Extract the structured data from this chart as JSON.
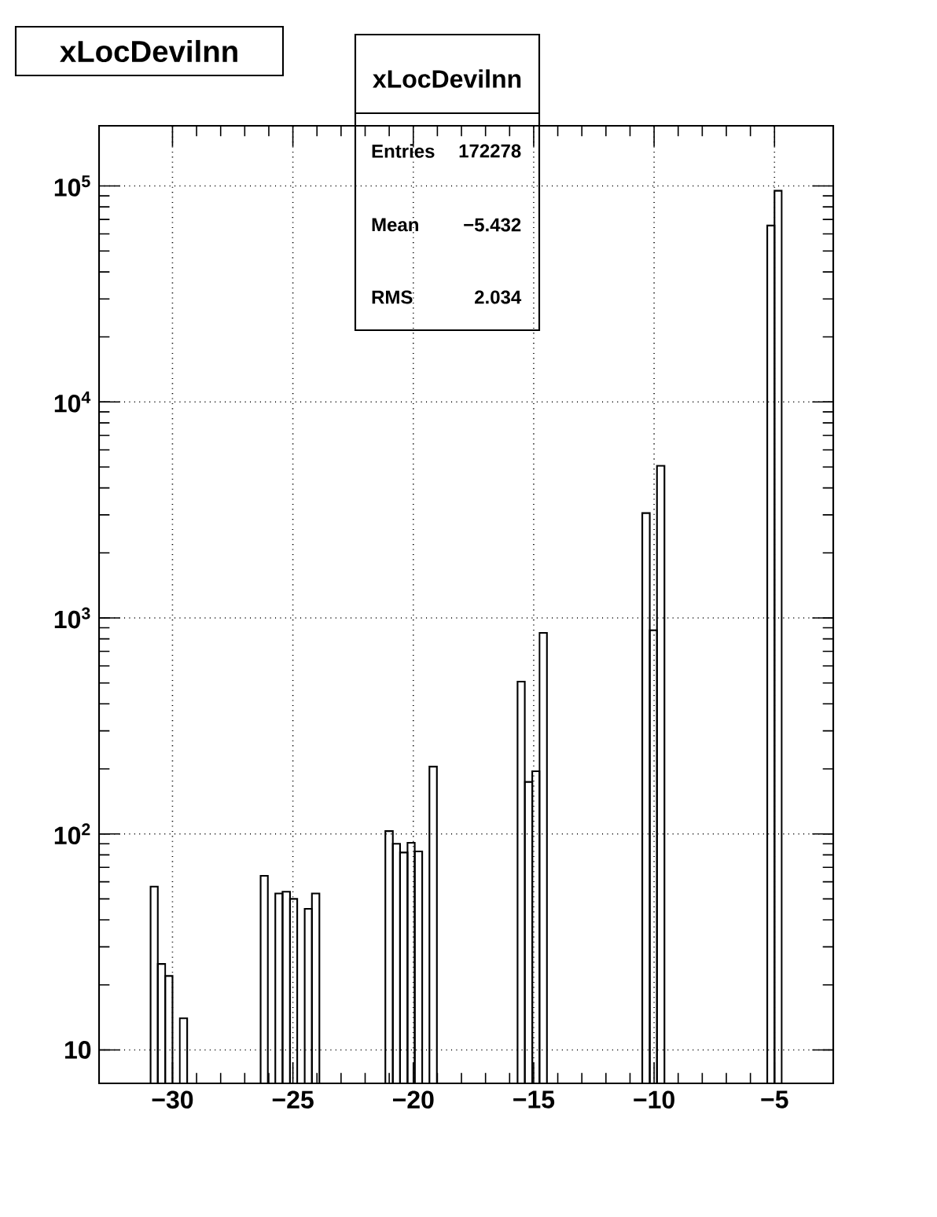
{
  "chart_data": {
    "type": "histogram",
    "title": "xLocDevilnn",
    "annotations": [
      "xLocDevilnn",
      "Entries",
      "172278",
      "Mean",
      "−5.432",
      "RMS",
      "2.034"
    ],
    "bins": [
      -30.91,
      -30.61,
      -30.3,
      -30.0,
      -29.7,
      -29.39,
      -26.34,
      -26.04,
      -25.73,
      -25.43,
      -25.12,
      -24.82,
      -24.51,
      -24.21,
      -23.9,
      -21.16,
      -20.85,
      -20.55,
      -20.24,
      -19.94,
      -19.63,
      -19.33,
      -19.02,
      -15.67,
      -15.37,
      -15.06,
      -14.76,
      -14.45,
      -10.49,
      -10.18,
      -9.88,
      -9.57,
      -5.3,
      -5.0,
      -4.7
    ],
    "values": [
      57,
      25,
      22,
      null,
      14,
      null,
      64,
      null,
      53,
      54,
      50,
      null,
      45,
      53,
      null,
      103,
      90,
      82,
      91,
      83,
      null,
      205,
      null,
      507,
      174,
      195,
      853,
      null,
      3060,
      877,
      5060,
      null,
      65600,
      95000
    ],
    "color": "#000000",
    "log": "y",
    "grid": true,
    "xlim": [
      -33.05,
      -2.56
    ],
    "ylim": [
      7,
      190000
    ],
    "xticks": [
      {
        "value": -30,
        "label": "−30"
      },
      {
        "value": -25,
        "label": "−25"
      },
      {
        "value": -20,
        "label": "−20"
      },
      {
        "value": -15,
        "label": "−15"
      },
      {
        "value": -10,
        "label": "−10"
      },
      {
        "value": -5,
        "label": "−5"
      }
    ],
    "yticks": [
      10,
      {
        "value": 100,
        "label": "10$^{2}$"
      },
      {
        "value": 1000,
        "label": "10$^{3}$"
      },
      {
        "value": 10000,
        "label": "10$^{4}$"
      },
      {
        "value": 100000,
        "label": "10$^{5}$"
      }
    ]
  }
}
